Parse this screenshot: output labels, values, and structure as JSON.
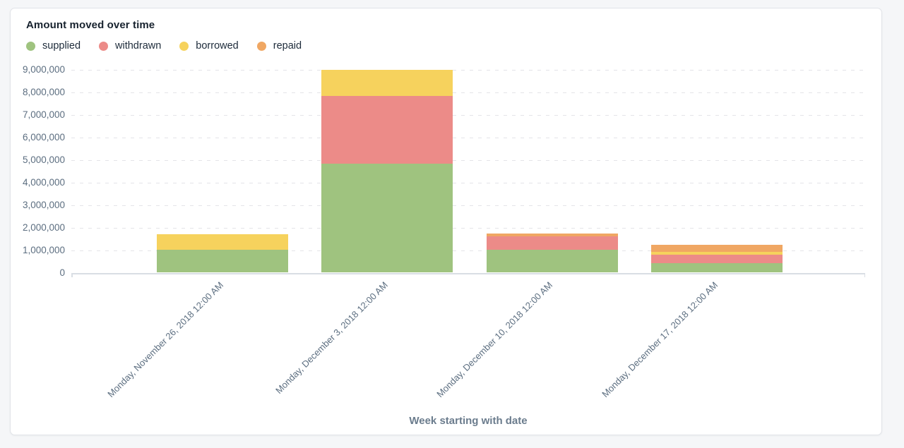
{
  "page": {
    "background_color": "#f5f6f8",
    "card_background_color": "#ffffff",
    "card_border_color": "#e1e3e8"
  },
  "chart_data": {
    "type": "bar",
    "stacked": true,
    "title": "Amount moved over time",
    "xlabel": "Week starting with date",
    "ylabel": "",
    "categories": [
      "Monday, November 26, 2018 12:00 AM",
      "Monday, December 3, 2018 12:00 AM",
      "Monday, December 10, 2018 12:00 AM",
      "Monday, December 17, 2018 12:00 AM"
    ],
    "series": [
      {
        "name": "supplied",
        "color": "#9fc37f",
        "values": [
          1020000,
          4850000,
          1020000,
          430000
        ]
      },
      {
        "name": "withdrawn",
        "color": "#ec8b88",
        "values": [
          0,
          3000000,
          600000,
          370000
        ]
      },
      {
        "name": "borrowed",
        "color": "#f6d25d",
        "values": [
          680000,
          1150000,
          0,
          120000
        ]
      },
      {
        "name": "repaid",
        "color": "#f0a763",
        "values": [
          0,
          0,
          110000,
          310000
        ]
      }
    ],
    "ylim": [
      0,
      9000000
    ],
    "ytick_interval": 1000000,
    "ytick_labels": [
      "0",
      "1,000,000",
      "2,000,000",
      "3,000,000",
      "4,000,000",
      "5,000,000",
      "6,000,000",
      "7,000,000",
      "8,000,000",
      "9,000,000"
    ],
    "grid": "horizontal-dashed",
    "gridline_color": "#e4e4e8",
    "legend_position": "top-left",
    "legend": [
      "supplied",
      "withdrawn",
      "borrowed",
      "repaid"
    ]
  }
}
